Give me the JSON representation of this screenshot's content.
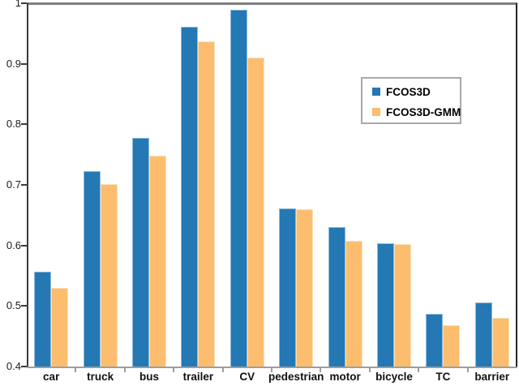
{
  "chart_data": {
    "type": "bar",
    "title": "",
    "xlabel": "",
    "ylabel": "",
    "categories": [
      "car",
      "truck",
      "bus",
      "trailer",
      "CV",
      "pedestrian",
      "motor",
      "bicycle",
      "TC",
      "barrier"
    ],
    "series": [
      {
        "name": "FCOS3D",
        "color": "#2478B4",
        "edge_color": "#8FBBDC",
        "values": [
          0.557,
          0.723,
          0.778,
          0.961,
          0.99,
          0.661,
          0.63,
          0.604,
          0.487,
          0.506
        ]
      },
      {
        "name": "FCOS3D-GMM",
        "color": "#FCBD6F",
        "edge_color": "#FDE0B6",
        "values": [
          0.53,
          0.702,
          0.748,
          0.937,
          0.91,
          0.66,
          0.608,
          0.602,
          0.469,
          0.48
        ]
      }
    ],
    "ylim": [
      0.4,
      1.0
    ],
    "yticks": [
      1,
      0.9,
      0.8,
      0.7,
      0.6,
      0.5,
      0.4
    ],
    "ytick_labels": [
      "1",
      "0.9",
      "0.8",
      "0.7",
      "0.6",
      "0.5",
      "0.4"
    ],
    "grid": false,
    "legend_position": "upper-right-inside"
  },
  "colors": {
    "top_spine": "#7F7F7F",
    "left_spine": "#3B3B3B",
    "right_spine": "#262626",
    "bottom_spine": "#9E9E9E",
    "boundary_tick": "#9E9E9E",
    "ytick_mark": "#3B3B3B",
    "text": "#1A1A1A",
    "background": "#FFFFFF"
  }
}
